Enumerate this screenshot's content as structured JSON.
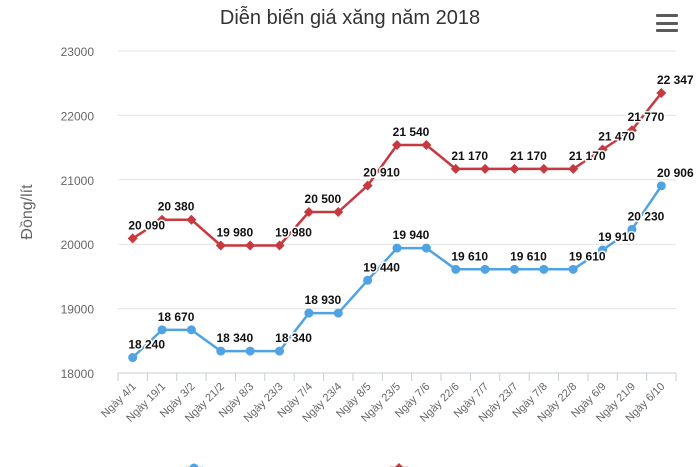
{
  "chart_data": {
    "type": "line",
    "title": "Diễn biến giá xăng năm 2018",
    "ylabel": "Đồng/lít",
    "xlabel": "",
    "ylim": [
      18000,
      23000
    ],
    "yticks": [
      18000,
      19000,
      20000,
      21000,
      22000,
      23000
    ],
    "ytick_labels": [
      "18000",
      "19000",
      "20000",
      "21000",
      "22000",
      "23000"
    ],
    "grid": true,
    "legend_position": "bottom",
    "categories": [
      "Ngày 4/1",
      "Ngày 19/1",
      "Ngày 3/2",
      "Ngày 21/2",
      "Ngày 8/3",
      "Ngày 23/3",
      "Ngày 7/4",
      "Ngày 23/4",
      "Ngày 8/5",
      "Ngày 23/5",
      "Ngày 7/6",
      "Ngày 22/6",
      "Ngày 7/7",
      "Ngày 23/7",
      "Ngày 7/8",
      "Ngày 22/8",
      "Ngày 6/9",
      "Ngày 21/9",
      "Ngày 6/10"
    ],
    "series": [
      {
        "color": "#c8383f",
        "values": [
          20090,
          20380,
          20380,
          19980,
          19980,
          19980,
          20500,
          20500,
          20910,
          21540,
          21540,
          21170,
          21170,
          21170,
          21170,
          21170,
          21470,
          21770,
          22347
        ],
        "labels": [
          "20 090",
          "20 380",
          null,
          "19 980",
          null,
          "19 980",
          "20 500",
          null,
          "20 910",
          "21 540",
          null,
          "21 170",
          null,
          "21 170",
          null,
          "21 170",
          "21 470",
          "21 770",
          "22 347"
        ]
      },
      {
        "color": "#4fa2e3",
        "values": [
          18240,
          18670,
          18670,
          18340,
          18340,
          18340,
          18930,
          18930,
          19440,
          19940,
          19940,
          19610,
          19610,
          19610,
          19610,
          19610,
          19910,
          20230,
          20906
        ],
        "labels": [
          "18 240",
          "18 670",
          null,
          "18 340",
          null,
          "18 340",
          "18 930",
          null,
          "19 440",
          "19 940",
          null,
          "19 610",
          null,
          "19 610",
          null,
          "19 610",
          "19 910",
          "20 230",
          "20 906"
        ]
      }
    ]
  },
  "toolbar": {
    "menu_icon": "hamburger-menu-icon"
  }
}
